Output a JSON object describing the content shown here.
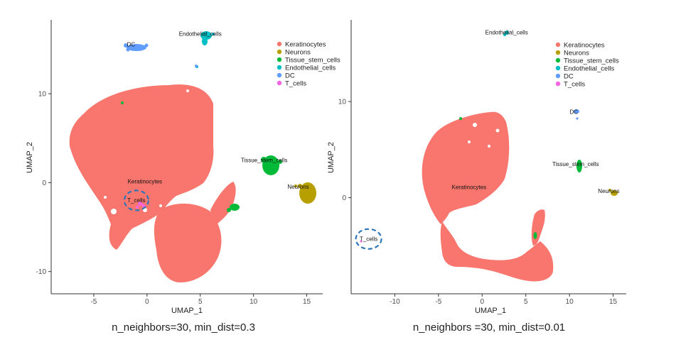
{
  "chart_data": [
    {
      "type": "scatter",
      "xlabel": "UMAP_1",
      "ylabel": "UMAP_2",
      "xlim": [
        -9,
        16.5
      ],
      "ylim": [
        -12.5,
        18.3
      ],
      "xticks": [
        -5,
        0,
        5,
        10,
        15
      ],
      "yticks": [
        -10,
        0,
        10
      ],
      "caption": "n_neighbors=30, min_dist=0.3",
      "legend_position": "top-right",
      "grid": false,
      "series": [
        {
          "name": "Keratinocytes",
          "color": "#F8766D"
        },
        {
          "name": "Neurons",
          "color": "#B79F00"
        },
        {
          "name": "Tissue_stem_cells",
          "color": "#00BA38"
        },
        {
          "name": "Endothelial_cells",
          "color": "#00BFC4"
        },
        {
          "name": "DC",
          "color": "#619CFF"
        },
        {
          "name": "T_cells",
          "color": "#F564E3"
        }
      ],
      "cluster_labels": [
        {
          "text": "Endothelial_cells",
          "x": 5.0,
          "y": 16.5
        },
        {
          "text": "DC",
          "x": -1.5,
          "y": 15.3
        },
        {
          "text": "Tissue_stem_cells",
          "x": 11.0,
          "y": 2.3
        },
        {
          "text": "Neurons",
          "x": 14.2,
          "y": -0.7
        },
        {
          "text": "Keratinocytes",
          "x": -0.2,
          "y": -0.1
        },
        {
          "text": "T_cells",
          "x": -1.0,
          "y": -2.2
        }
      ],
      "highlight": {
        "label": "T_cells",
        "x": -1.0,
        "y": -2.0
      }
    },
    {
      "type": "scatter",
      "xlabel": "UMAP_1",
      "ylabel": "UMAP_2",
      "xlim": [
        -15,
        16.5
      ],
      "ylim": [
        -10,
        18.5
      ],
      "xticks": [
        -10,
        -5,
        0,
        5,
        10,
        15
      ],
      "yticks": [
        0,
        10
      ],
      "caption": "n_neighbors =30, min_dist=0.01",
      "legend_position": "top-right",
      "grid": false,
      "series": [
        {
          "name": "Keratinocytes",
          "color": "#F8766D"
        },
        {
          "name": "Neurons",
          "color": "#B79F00"
        },
        {
          "name": "Tissue_stem_cells",
          "color": "#00BA38"
        },
        {
          "name": "Endothelial_cells",
          "color": "#00BFC4"
        },
        {
          "name": "DC",
          "color": "#619CFF"
        },
        {
          "name": "T_cells",
          "color": "#F564E3"
        }
      ],
      "cluster_labels": [
        {
          "text": "Endothelial_cells",
          "x": 2.8,
          "y": 17.0
        },
        {
          "text": "DC",
          "x": 10.5,
          "y": 8.7
        },
        {
          "text": "Tissue_stem_cells",
          "x": 10.7,
          "y": 3.3
        },
        {
          "text": "Neurons",
          "x": 14.5,
          "y": 0.5
        },
        {
          "text": "Keratinocytes",
          "x": -1.5,
          "y": 0.9
        },
        {
          "text": "T_cells",
          "x": -13.0,
          "y": -4.5
        }
      ],
      "highlight": {
        "label": "T_cells",
        "x": -13.0,
        "y": -4.3
      }
    }
  ]
}
